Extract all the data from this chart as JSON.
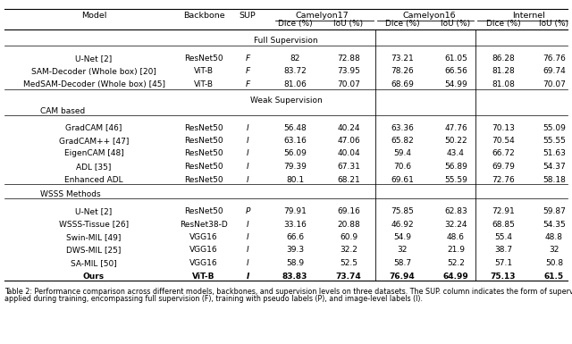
{
  "caption": "Table 2: Performance comparison across different models, backbones, and supervision levels on three datasets. The SUP. column indicates the form of supervision applied during training, encompassing full supervision (F), training with pseudo labels (P), and image-level labels (I).",
  "sections": [
    {
      "section_title": "Full Supervision",
      "subsection_title": null,
      "rows": [
        [
          "U-Net [2]",
          "ResNet50",
          "F",
          "82",
          "72.88",
          "73.21",
          "61.05",
          "86.28",
          "76.76",
          false
        ],
        [
          "SAM-Decoder (Whole box) [20]",
          "ViT-B",
          "F",
          "83.72",
          "73.95",
          "78.26",
          "66.56",
          "81.28",
          "69.74",
          false
        ],
        [
          "MedSAM-Decoder (Whole box) [45]",
          "ViT-B",
          "F",
          "81.06",
          "70.07",
          "68.69",
          "54.99",
          "81.08",
          "70.07",
          false
        ]
      ]
    },
    {
      "section_title": "Weak Supervision",
      "subsection_title": "CAM based",
      "rows": [
        [
          "GradCAM [46]",
          "ResNet50",
          "I",
          "56.48",
          "40.24",
          "63.36",
          "47.76",
          "70.13",
          "55.09",
          false
        ],
        [
          "GradCAM++ [47]",
          "ResNet50",
          "I",
          "63.16",
          "47.06",
          "65.82",
          "50.22",
          "70.54",
          "55.55",
          false
        ],
        [
          "EigenCAM [48]",
          "ResNet50",
          "I",
          "56.09",
          "40.04",
          "59.4",
          "43.4",
          "66.72",
          "51.63",
          false
        ],
        [
          "ADL [35]",
          "ResNet50",
          "I",
          "79.39",
          "67.31",
          "70.6",
          "56.89",
          "69.79",
          "54.37",
          false
        ],
        [
          "Enhanced ADL",
          "ResNet50",
          "I",
          "80.1",
          "68.21",
          "69.61",
          "55.59",
          "72.76",
          "58.18",
          false
        ]
      ]
    },
    {
      "section_title": null,
      "subsection_title": "WSSS Methods",
      "rows": [
        [
          "U-Net [2]",
          "ResNet50",
          "P",
          "79.91",
          "69.16",
          "75.85",
          "62.83",
          "72.91",
          "59.87",
          false
        ],
        [
          "WSSS-Tissue [26]",
          "ResNet38-D",
          "I",
          "33.16",
          "20.88",
          "46.92",
          "32.24",
          "68.85",
          "54.35",
          false
        ],
        [
          "Swin-MIL [49]",
          "VGG16",
          "I",
          "66.6",
          "60.9",
          "54.9",
          "48.6",
          "55.4",
          "48.8",
          false
        ],
        [
          "DWS-MIL [25]",
          "VGG16",
          "I",
          "39.3",
          "32.2",
          "32",
          "21.9",
          "38.7",
          "32",
          false
        ],
        [
          "SA-MIL [50]",
          "VGG16",
          "I",
          "58.9",
          "52.5",
          "58.7",
          "52.2",
          "57.1",
          "50.8",
          false
        ],
        [
          "Ours",
          "ViT-B",
          "I",
          "83.83",
          "73.74",
          "76.94",
          "64.99",
          "75.13",
          "61.5",
          true
        ]
      ]
    }
  ]
}
